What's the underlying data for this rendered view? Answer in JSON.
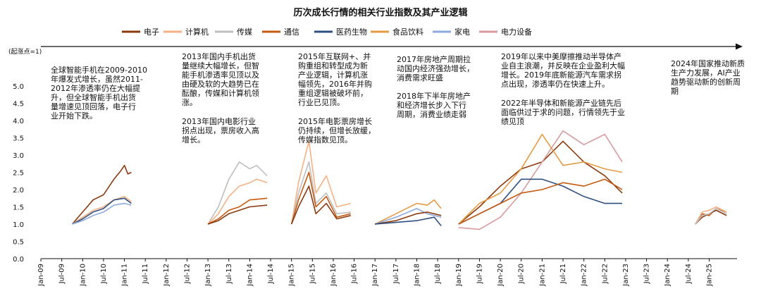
{
  "chart_data": {
    "type": "line",
    "title": "历次成长行情的相关行业指数及其产业逻辑",
    "ylabel": "(起涨点=1)",
    "ylim": [
      0.0,
      5.0
    ],
    "yticks": [
      "0.0",
      "0.5",
      "1.0",
      "1.5",
      "2.0",
      "2.5",
      "3.0",
      "3.5",
      "4.0",
      "4.5",
      "5.0"
    ],
    "xticks": [
      "Jan-09",
      "Jul-09",
      "Jan-10",
      "Jul-10",
      "Jan-11",
      "Jul-11",
      "Jan-12",
      "Jul-12",
      "Jan-13",
      "Jul-13",
      "Jan-14",
      "Jul-14",
      "Jan-15",
      "Jul-15",
      "Jan-16",
      "Jul-16",
      "Jan-17",
      "Jul-17",
      "Jan-18",
      "Jul-18",
      "Jan-19",
      "Jul-19",
      "Jan-20",
      "Jul-20",
      "Jan-21",
      "Jul-21",
      "Jan-22",
      "Jul-22",
      "Jan-23",
      "Jul-23",
      "Jan-24",
      "Jul-24",
      "Jan-25"
    ],
    "legend_position": "top",
    "grid": false,
    "series": [
      {
        "name": "电子",
        "color": "#8B3A0F"
      },
      {
        "name": "计算机",
        "color": "#F4B183"
      },
      {
        "name": "传媒",
        "color": "#BFBFBF"
      },
      {
        "name": "通信",
        "color": "#C55A11"
      },
      {
        "name": "医药生物",
        "color": "#2F4F7F"
      },
      {
        "name": "食品饮料",
        "color": "#E59B45"
      },
      {
        "name": "家电",
        "color": "#8EA9DB"
      },
      {
        "name": "电力设备",
        "color": "#D99AA0"
      }
    ],
    "episodes": [
      {
        "x_range": [
          "Oct-09",
          "Mar-11"
        ],
        "series_points": {
          "电子": [
            [
              "Oct-09",
              1.0
            ],
            [
              "Jan-10",
              1.35
            ],
            [
              "Apr-10",
              1.7
            ],
            [
              "Jul-10",
              1.85
            ],
            [
              "Oct-10",
              2.3
            ],
            [
              "Dec-10",
              2.55
            ],
            [
              "Jan-11",
              2.7
            ],
            [
              "Feb-11",
              2.45
            ],
            [
              "Mar-11",
              2.5
            ]
          ],
          "计算机": [
            [
              "Oct-09",
              1.0
            ],
            [
              "Jan-10",
              1.2
            ],
            [
              "Apr-10",
              1.4
            ],
            [
              "Jul-10",
              1.5
            ],
            [
              "Oct-10",
              1.7
            ],
            [
              "Jan-11",
              1.8
            ],
            [
              "Mar-11",
              1.65
            ]
          ],
          "医药生物": [
            [
              "Oct-09",
              1.0
            ],
            [
              "Jan-10",
              1.15
            ],
            [
              "Apr-10",
              1.35
            ],
            [
              "Jul-10",
              1.45
            ],
            [
              "Oct-10",
              1.7
            ],
            [
              "Jan-11",
              1.75
            ],
            [
              "Mar-11",
              1.6
            ]
          ],
          "家电": [
            [
              "Oct-09",
              1.0
            ],
            [
              "Jan-10",
              1.1
            ],
            [
              "Apr-10",
              1.25
            ],
            [
              "Jul-10",
              1.35
            ],
            [
              "Oct-10",
              1.55
            ],
            [
              "Jan-11",
              1.6
            ],
            [
              "Mar-11",
              1.55
            ]
          ]
        }
      },
      {
        "x_range": [
          "Jan-13",
          "Jun-14"
        ],
        "series_points": {
          "传媒": [
            [
              "Jan-13",
              1.0
            ],
            [
              "Apr-13",
              1.5
            ],
            [
              "Jul-13",
              2.3
            ],
            [
              "Oct-13",
              2.8
            ],
            [
              "Jan-14",
              2.6
            ],
            [
              "Mar-14",
              2.7
            ],
            [
              "Jun-14",
              2.4
            ]
          ],
          "计算机": [
            [
              "Jan-13",
              1.0
            ],
            [
              "Apr-13",
              1.3
            ],
            [
              "Jul-13",
              1.8
            ],
            [
              "Oct-13",
              2.1
            ],
            [
              "Jan-14",
              2.2
            ],
            [
              "Mar-14",
              2.3
            ],
            [
              "Jun-14",
              2.2
            ]
          ],
          "通信": [
            [
              "Jan-13",
              1.0
            ],
            [
              "Apr-13",
              1.15
            ],
            [
              "Jul-13",
              1.4
            ],
            [
              "Oct-13",
              1.5
            ],
            [
              "Jan-14",
              1.7
            ],
            [
              "Jun-14",
              1.75
            ]
          ],
          "电子": [
            [
              "Jan-13",
              1.0
            ],
            [
              "Apr-13",
              1.1
            ],
            [
              "Jul-13",
              1.3
            ],
            [
              "Oct-13",
              1.4
            ],
            [
              "Jan-14",
              1.5
            ],
            [
              "Jun-14",
              1.55
            ]
          ]
        }
      },
      {
        "x_range": [
          "Jan-15",
          "Jun-16"
        ],
        "series_points": {
          "计算机": [
            [
              "Jan-15",
              1.0
            ],
            [
              "Mar-15",
              2.2
            ],
            [
              "Jun-15",
              3.4
            ],
            [
              "Aug-15",
              1.9
            ],
            [
              "Nov-15",
              2.4
            ],
            [
              "Feb-16",
              1.5
            ],
            [
              "Jun-16",
              1.6
            ]
          ],
          "传媒": [
            [
              "Jan-15",
              1.0
            ],
            [
              "Mar-15",
              1.9
            ],
            [
              "Jun-15",
              2.8
            ],
            [
              "Aug-15",
              1.6
            ],
            [
              "Nov-15",
              1.9
            ],
            [
              "Feb-16",
              1.3
            ],
            [
              "Jun-16",
              1.35
            ]
          ],
          "通信": [
            [
              "Jan-15",
              1.0
            ],
            [
              "Mar-15",
              1.7
            ],
            [
              "Jun-15",
              2.5
            ],
            [
              "Aug-15",
              1.5
            ],
            [
              "Nov-15",
              1.8
            ],
            [
              "Feb-16",
              1.2
            ],
            [
              "Jun-16",
              1.3
            ]
          ],
          "电子": [
            [
              "Jan-15",
              1.0
            ],
            [
              "Mar-15",
              1.5
            ],
            [
              "Jun-15",
              2.1
            ],
            [
              "Aug-15",
              1.3
            ],
            [
              "Nov-15",
              1.6
            ],
            [
              "Feb-16",
              1.15
            ],
            [
              "Jun-16",
              1.25
            ]
          ]
        }
      },
      {
        "x_range": [
          "Jan-17",
          "Aug-18"
        ],
        "series_points": {
          "食品饮料": [
            [
              "Jan-17",
              1.0
            ],
            [
              "Jul-17",
              1.3
            ],
            [
              "Jan-18",
              1.6
            ],
            [
              "Apr-18",
              1.55
            ],
            [
              "Jun-18",
              1.7
            ],
            [
              "Aug-18",
              1.45
            ]
          ],
          "家电": [
            [
              "Jan-17",
              1.0
            ],
            [
              "Jul-17",
              1.2
            ],
            [
              "Jan-18",
              1.45
            ],
            [
              "Apr-18",
              1.3
            ],
            [
              "Aug-18",
              1.2
            ]
          ],
          "电子": [
            [
              "Jan-17",
              1.0
            ],
            [
              "Jul-17",
              1.1
            ],
            [
              "Jan-18",
              1.3
            ],
            [
              "Apr-18",
              1.35
            ],
            [
              "Aug-18",
              1.25
            ]
          ],
          "医药生物": [
            [
              "Jan-17",
              1.0
            ],
            [
              "Jul-17",
              1.05
            ],
            [
              "Jan-18",
              1.1
            ],
            [
              "Jun-18",
              1.2
            ],
            [
              "Aug-18",
              0.95
            ]
          ]
        }
      },
      {
        "x_range": [
          "Jan-19",
          "Dec-22"
        ],
        "series_points": {
          "电子": [
            [
              "Jan-19",
              1.0
            ],
            [
              "Jul-19",
              1.5
            ],
            [
              "Jan-20",
              2.1
            ],
            [
              "Jul-20",
              2.6
            ],
            [
              "Jan-21",
              2.8
            ],
            [
              "Jul-21",
              3.4
            ],
            [
              "Jan-22",
              2.8
            ],
            [
              "Jul-22",
              2.4
            ],
            [
              "Dec-22",
              1.9
            ]
          ],
          "电力设备": [
            [
              "Jan-19",
              0.9
            ],
            [
              "Jul-19",
              0.85
            ],
            [
              "Jan-20",
              1.2
            ],
            [
              "Jul-20",
              1.9
            ],
            [
              "Jan-21",
              2.8
            ],
            [
              "Jul-21",
              3.7
            ],
            [
              "Jan-22",
              3.3
            ],
            [
              "Jul-22",
              3.6
            ],
            [
              "Dec-22",
              2.8
            ]
          ],
          "食品饮料": [
            [
              "Jan-19",
              1.0
            ],
            [
              "Jul-19",
              1.6
            ],
            [
              "Jan-20",
              1.9
            ],
            [
              "Jul-20",
              2.6
            ],
            [
              "Jan-21",
              3.6
            ],
            [
              "Jul-21",
              2.7
            ],
            [
              "Jan-22",
              2.8
            ],
            [
              "Jul-22",
              2.6
            ],
            [
              "Dec-22",
              2.5
            ]
          ],
          "医药生物": [
            [
              "Jan-19",
              1.0
            ],
            [
              "Jul-19",
              1.3
            ],
            [
              "Jan-20",
              1.6
            ],
            [
              "Jul-20",
              2.3
            ],
            [
              "Jan-21",
              2.3
            ],
            [
              "Jul-21",
              2.1
            ],
            [
              "Jan-22",
              1.8
            ],
            [
              "Jul-22",
              1.6
            ],
            [
              "Dec-22",
              1.6
            ]
          ],
          "通信": [
            [
              "Jan-19",
              1.0
            ],
            [
              "Jul-19",
              1.3
            ],
            [
              "Jan-20",
              1.6
            ],
            [
              "Jul-20",
              1.9
            ],
            [
              "Jan-21",
              2.0
            ],
            [
              "Jul-21",
              2.2
            ],
            [
              "Jan-22",
              2.1
            ],
            [
              "Jul-22",
              2.3
            ],
            [
              "Dec-22",
              2.0
            ]
          ]
        }
      },
      {
        "x_range": [
          "Sep-24",
          "Jun-25"
        ],
        "series_points": {
          "通信": [
            [
              "Sep-24",
              1.0
            ],
            [
              "Nov-24",
              1.3
            ],
            [
              "Jan-25",
              1.25
            ],
            [
              "Mar-25",
              1.45
            ],
            [
              "Jun-25",
              1.35
            ]
          ],
          "电子": [
            [
              "Sep-24",
              1.0
            ],
            [
              "Nov-24",
              1.2
            ],
            [
              "Jan-25",
              1.3
            ],
            [
              "Mar-25",
              1.4
            ],
            [
              "Jun-25",
              1.25
            ]
          ],
          "计算机": [
            [
              "Sep-24",
              1.0
            ],
            [
              "Nov-24",
              1.35
            ],
            [
              "Jan-25",
              1.4
            ],
            [
              "Mar-25",
              1.5
            ],
            [
              "Jun-25",
              1.35
            ]
          ],
          "传媒": [
            [
              "Sep-24",
              1.0
            ],
            [
              "Nov-24",
              1.25
            ],
            [
              "Jan-25",
              1.3
            ],
            [
              "Mar-25",
              1.45
            ],
            [
              "Jun-25",
              1.3
            ]
          ]
        }
      }
    ],
    "annotations": [
      "全球智能手机在2009-2010\n年爆发式增长，虽然2011-\n2012年渗透率仍在大幅提\n升，但全球智能手机出货\n量增速见顶回落，电子行\n业开始下跌。",
      "2013年国内手机出货\n量继续大幅增长，但智\n能手机渗透率见顶以及\n由硬及软的大趋势已在\n酝酿，传媒和计算机领\n涨。",
      "2013年国内电影行业\n拐点出现，票房收入高\n增长。",
      "2015年互联网+、并\n购重组和转型成为新\n产业逻辑，计算机涨\n幅领先，2016年并购\n重组逻辑被破坏前，\n行业已见顶。",
      "2015年电影票房增长\n仍持续，但增长放缓，\n传媒指数见顶。",
      "2017年房地产周期拉\n动国内经济强劲增长，\n消费需求旺盛",
      "2018年下半年房地产\n和经济增长步入下行\n周期，消费业绩走弱",
      "2019年以来中美摩擦推动半导体产\n业自主浪潮，并反映在企业盈利大幅\n增长。2019年底新能源汽车需求拐\n点出现，渗透率仍在快速上升。",
      "2022年半导体和新能源产业链先后\n面临供过于求的问题，行情领先于业\n绩见顶",
      "2024年国家推动新质\n生产力发展，AI产业\n趋势驱动新的创新周\n期"
    ]
  }
}
